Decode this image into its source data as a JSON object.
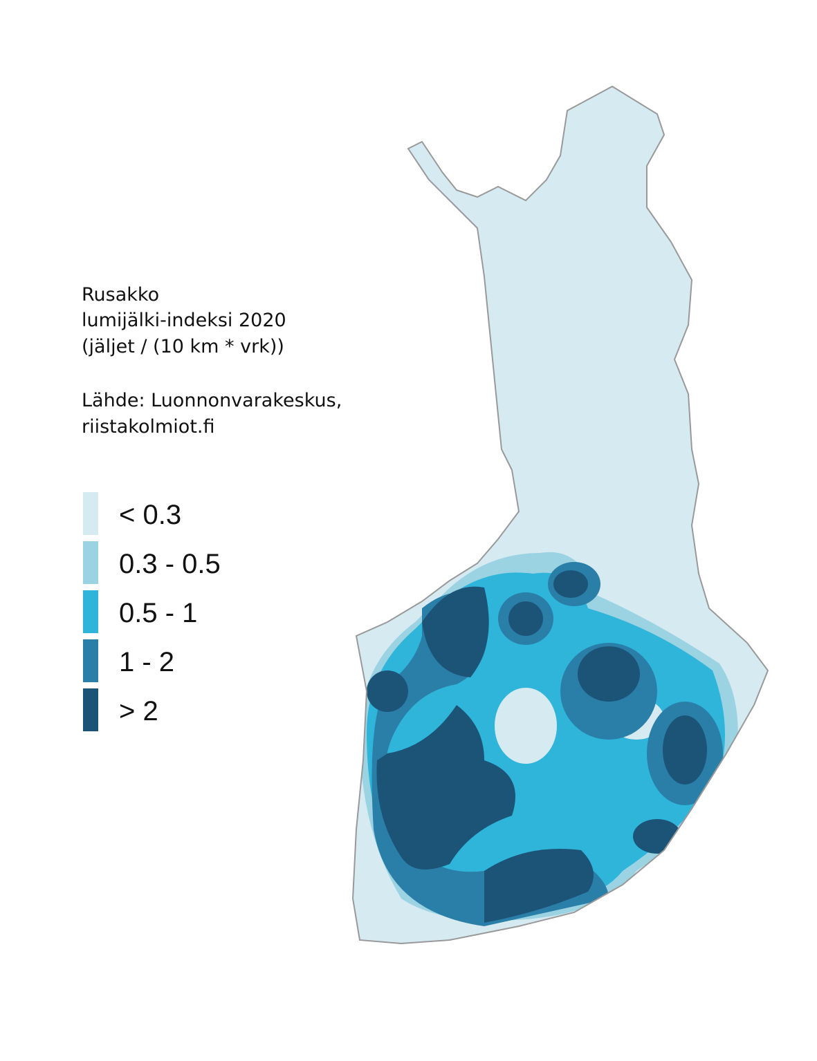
{
  "info": {
    "lines": [
      "Rusakko",
      "lumijälki-indeksi 2020",
      "(jäljet / (10 km * vrk))"
    ],
    "source": [
      "Lähde: Luonnonvarakeskus,",
      "riistakolmiot.fi"
    ]
  },
  "legend": [
    {
      "label": "< 0.3",
      "color": "#d6eaf2"
    },
    {
      "label": "0.3 - 0.5",
      "color": "#9bd3e3"
    },
    {
      "label": "0.5 - 1",
      "color": "#2fb4da"
    },
    {
      "label": "1 - 2",
      "color": "#2a7fa8"
    },
    {
      "label": "> 2",
      "color": "#1c5478"
    }
  ]
}
